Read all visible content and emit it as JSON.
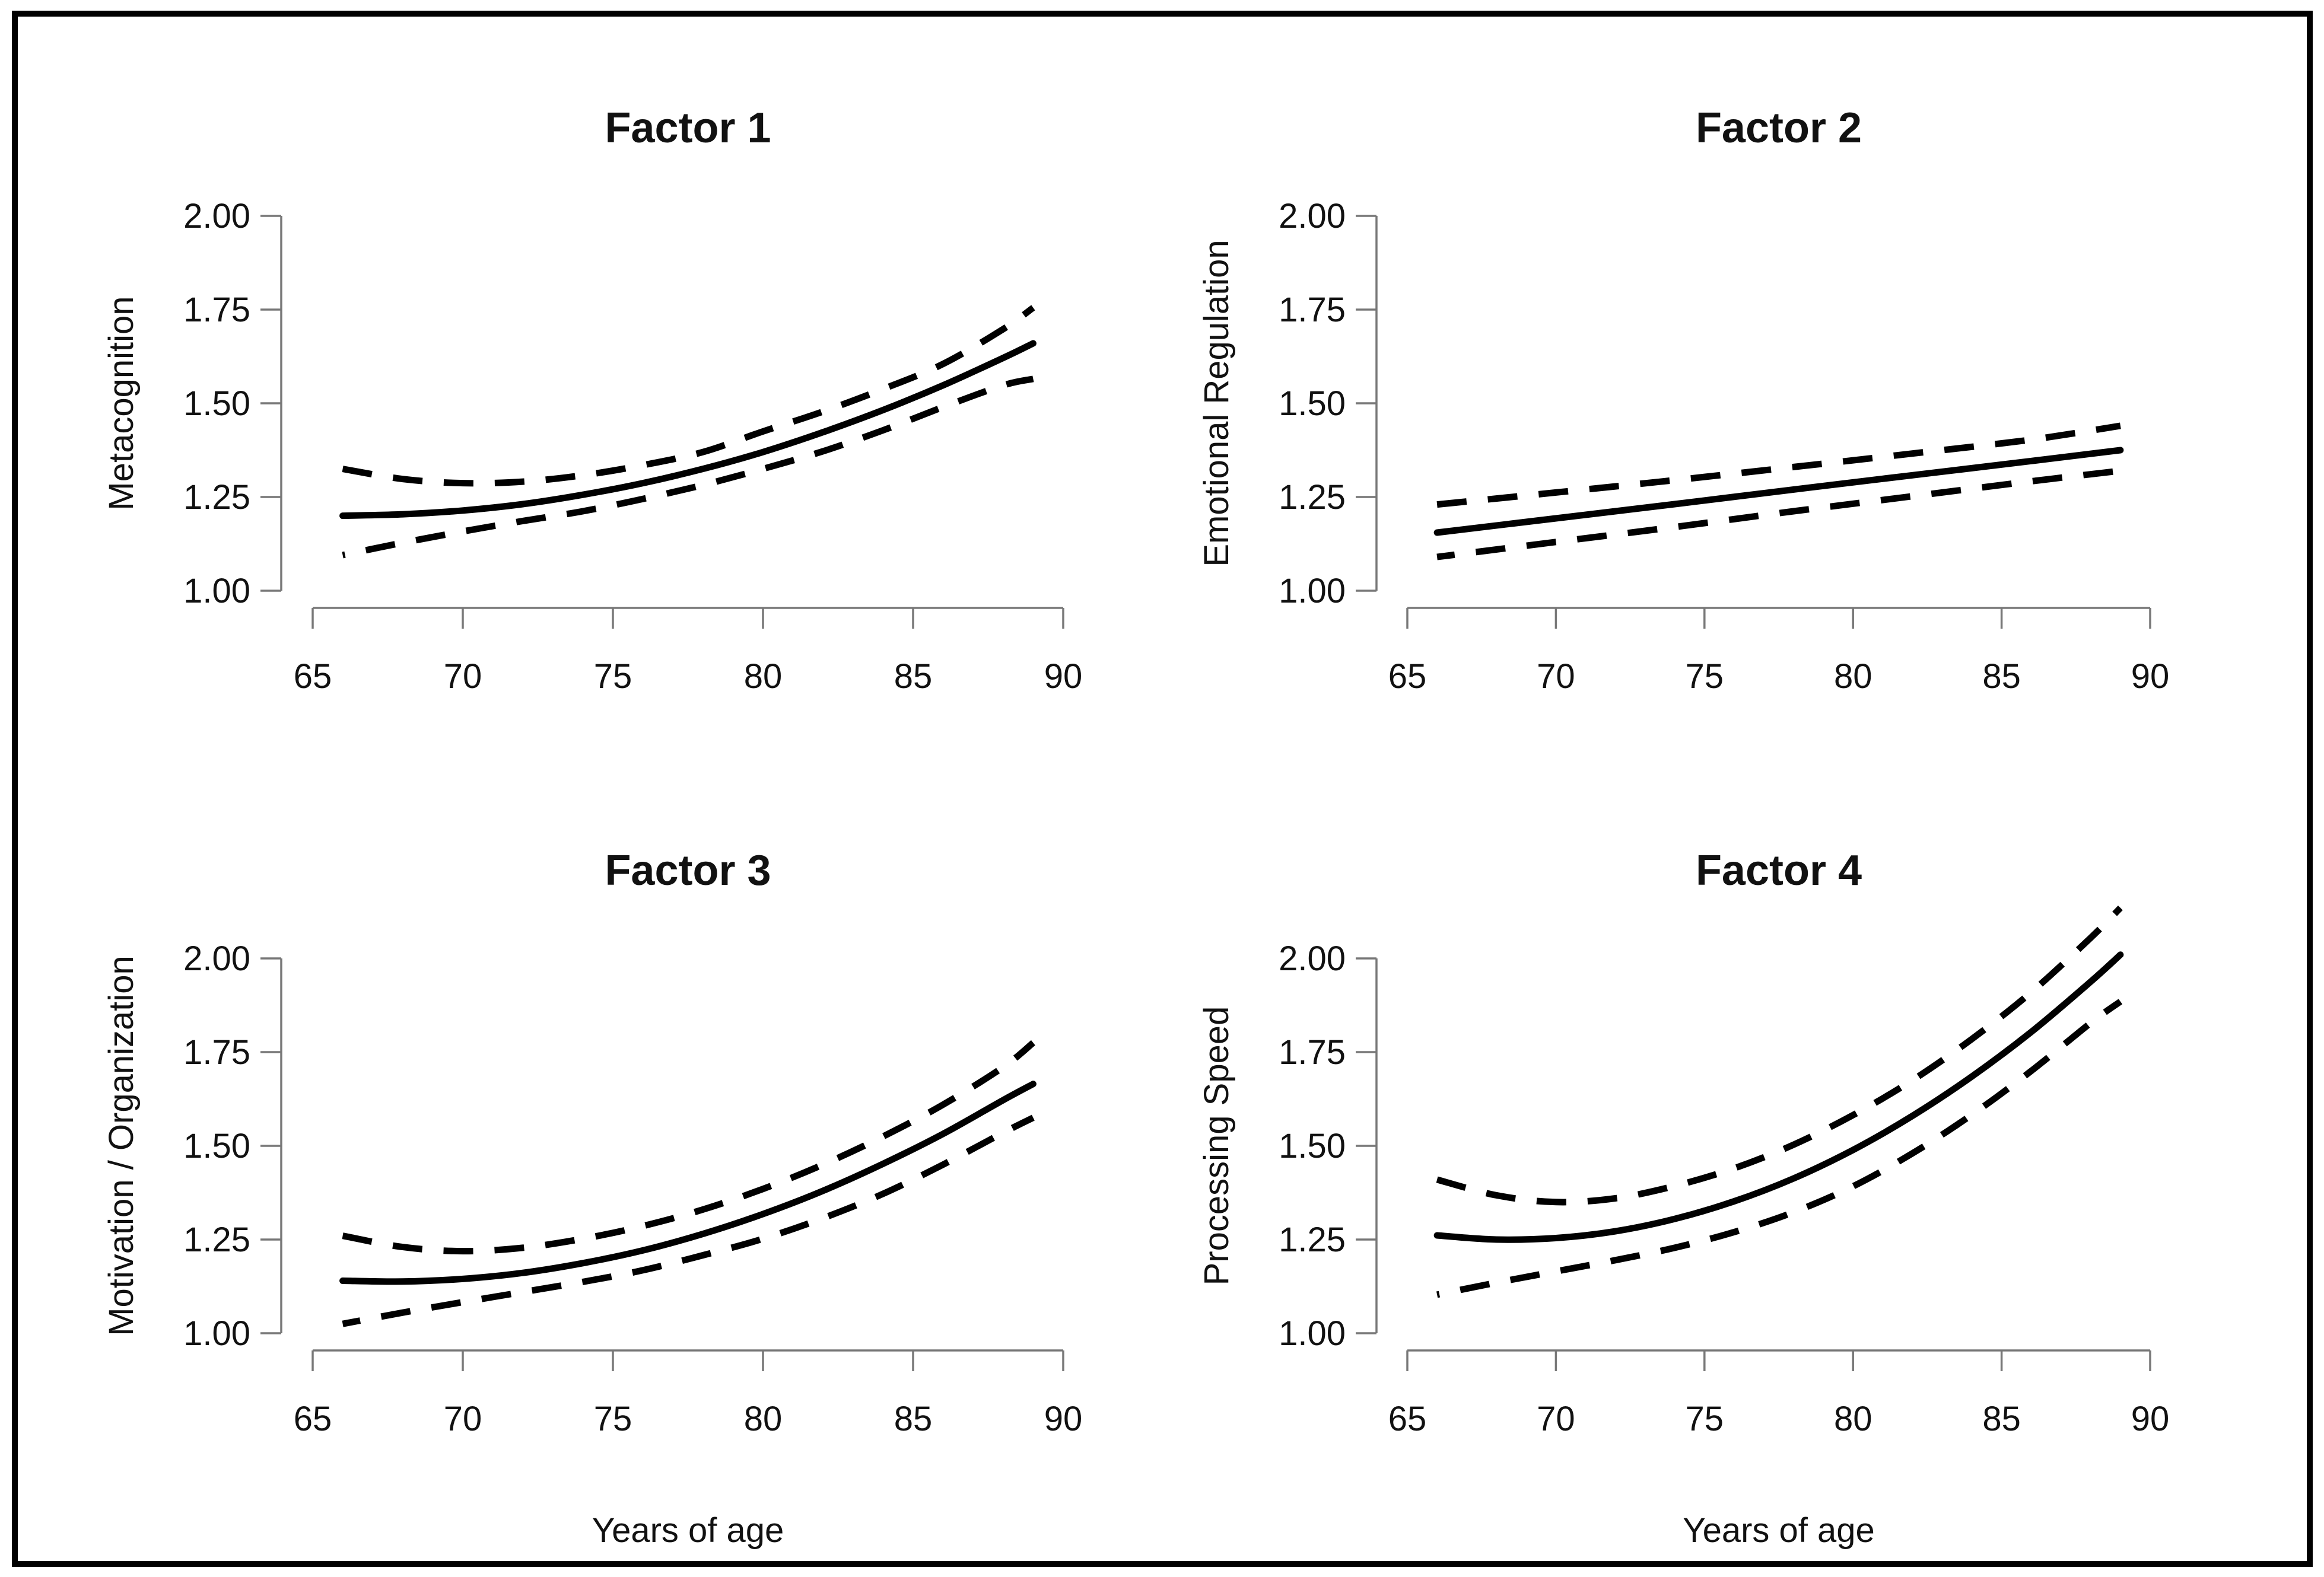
{
  "figure": {
    "background_color": "#ffffff",
    "border_color": "#000000",
    "curve_color": "#000000",
    "axis_color": "#787878",
    "x_axis_label": "Years of age"
  },
  "chart_data": [
    {
      "type": "line",
      "title": "Factor 1",
      "ylabel": "Metacognition",
      "xlabel": "",
      "xlim": [
        65,
        90
      ],
      "ylim": [
        1.0,
        2.0
      ],
      "x_ticks": [
        65,
        70,
        75,
        80,
        85,
        90
      ],
      "x_tick_labels": [
        "65",
        "70",
        "75",
        "80",
        "85",
        "90"
      ],
      "y_ticks": [
        1.0,
        1.25,
        1.5,
        1.75,
        2.0
      ],
      "y_tick_labels": [
        "1.00",
        "1.25",
        "1.50",
        "1.75",
        "2.00"
      ],
      "grid": false,
      "legend": "none",
      "series": [
        {
          "name": "estimate",
          "style": "solid",
          "dash_offset": 0,
          "points": [
            [
              66,
              1.2
            ],
            [
              68,
              1.204
            ],
            [
              70,
              1.214
            ],
            [
              72,
              1.231
            ],
            [
              74,
              1.256
            ],
            [
              76,
              1.287
            ],
            [
              78,
              1.325
            ],
            [
              80,
              1.37
            ],
            [
              82,
              1.423
            ],
            [
              84,
              1.482
            ],
            [
              86,
              1.548
            ],
            [
              88,
              1.621
            ],
            [
              89,
              1.66
            ]
          ]
        },
        {
          "name": "upper-ci",
          "style": "dashed",
          "dash_offset": 0,
          "points": [
            [
              66,
              1.325
            ],
            [
              68,
              1.298
            ],
            [
              70,
              1.287
            ],
            [
              72,
              1.291
            ],
            [
              74,
              1.308
            ],
            [
              76,
              1.335
            ],
            [
              78,
              1.37
            ],
            [
              80,
              1.425
            ],
            [
              82,
              1.478
            ],
            [
              84,
              1.538
            ],
            [
              86,
              1.605
            ],
            [
              88,
              1.698
            ],
            [
              89,
              1.755
            ]
          ]
        },
        {
          "name": "lower-ci",
          "style": "dashed",
          "dash_offset": 46,
          "points": [
            [
              66,
              1.095
            ],
            [
              68,
              1.128
            ],
            [
              70,
              1.158
            ],
            [
              72,
              1.186
            ],
            [
              74,
              1.212
            ],
            [
              76,
              1.245
            ],
            [
              78,
              1.282
            ],
            [
              80,
              1.325
            ],
            [
              82,
              1.372
            ],
            [
              84,
              1.428
            ],
            [
              86,
              1.49
            ],
            [
              88,
              1.548
            ],
            [
              89,
              1.565
            ]
          ]
        }
      ]
    },
    {
      "type": "line",
      "title": "Factor 2",
      "ylabel": "Emotional Regulation",
      "xlabel": "",
      "xlim": [
        65,
        90
      ],
      "ylim": [
        1.0,
        2.0
      ],
      "x_ticks": [
        65,
        70,
        75,
        80,
        85,
        90
      ],
      "x_tick_labels": [
        "65",
        "70",
        "75",
        "80",
        "85",
        "90"
      ],
      "y_ticks": [
        1.0,
        1.25,
        1.5,
        1.75,
        2.0
      ],
      "y_tick_labels": [
        "1.00",
        "1.25",
        "1.50",
        "1.75",
        "2.00"
      ],
      "grid": false,
      "legend": "none",
      "series": [
        {
          "name": "estimate",
          "style": "solid",
          "dash_offset": 0,
          "points": [
            [
              66,
              1.155
            ],
            [
              70,
              1.193
            ],
            [
              74,
              1.231
            ],
            [
              78,
              1.27
            ],
            [
              82,
              1.308
            ],
            [
              86,
              1.346
            ],
            [
              89,
              1.375
            ]
          ]
        },
        {
          "name": "upper-ci",
          "style": "dashed",
          "dash_offset": 0,
          "points": [
            [
              66,
              1.23
            ],
            [
              70,
              1.262
            ],
            [
              74,
              1.295
            ],
            [
              78,
              1.33
            ],
            [
              82,
              1.366
            ],
            [
              86,
              1.403
            ],
            [
              89,
              1.44
            ]
          ]
        },
        {
          "name": "lower-ci",
          "style": "dashed",
          "dash_offset": 20,
          "points": [
            [
              66,
              1.09
            ],
            [
              70,
              1.13
            ],
            [
              74,
              1.17
            ],
            [
              78,
              1.212
            ],
            [
              82,
              1.252
            ],
            [
              86,
              1.292
            ],
            [
              89,
              1.32
            ]
          ]
        }
      ]
    },
    {
      "type": "line",
      "title": "Factor 3",
      "ylabel": "Motivation / Organization",
      "xlabel": "Years of age",
      "xlim": [
        65,
        90
      ],
      "ylim": [
        1.0,
        2.0
      ],
      "x_ticks": [
        65,
        70,
        75,
        80,
        85,
        90
      ],
      "x_tick_labels": [
        "65",
        "70",
        "75",
        "80",
        "85",
        "90"
      ],
      "y_ticks": [
        1.0,
        1.25,
        1.5,
        1.75,
        2.0
      ],
      "y_tick_labels": [
        "1.00",
        "1.25",
        "1.50",
        "1.75",
        "2.00"
      ],
      "grid": false,
      "legend": "none",
      "series": [
        {
          "name": "estimate",
          "style": "solid",
          "dash_offset": 0,
          "points": [
            [
              66,
              1.14
            ],
            [
              68,
              1.138
            ],
            [
              70,
              1.145
            ],
            [
              72,
              1.161
            ],
            [
              74,
              1.187
            ],
            [
              76,
              1.221
            ],
            [
              78,
              1.265
            ],
            [
              80,
              1.318
            ],
            [
              82,
              1.38
            ],
            [
              84,
              1.452
            ],
            [
              86,
              1.532
            ],
            [
              88,
              1.622
            ],
            [
              89,
              1.665
            ]
          ]
        },
        {
          "name": "upper-ci",
          "style": "dashed",
          "dash_offset": 0,
          "points": [
            [
              66,
              1.26
            ],
            [
              68,
              1.23
            ],
            [
              70,
              1.219
            ],
            [
              72,
              1.228
            ],
            [
              74,
              1.252
            ],
            [
              76,
              1.286
            ],
            [
              78,
              1.33
            ],
            [
              80,
              1.385
            ],
            [
              82,
              1.45
            ],
            [
              84,
              1.525
            ],
            [
              86,
              1.61
            ],
            [
              88,
              1.71
            ],
            [
              89,
              1.775
            ]
          ]
        },
        {
          "name": "lower-ci",
          "style": "dashed",
          "dash_offset": 20,
          "points": [
            [
              66,
              1.025
            ],
            [
              68,
              1.055
            ],
            [
              70,
              1.083
            ],
            [
              72,
              1.11
            ],
            [
              74,
              1.137
            ],
            [
              76,
              1.168
            ],
            [
              78,
              1.208
            ],
            [
              80,
              1.252
            ],
            [
              82,
              1.307
            ],
            [
              84,
              1.372
            ],
            [
              86,
              1.45
            ],
            [
              88,
              1.535
            ],
            [
              89,
              1.575
            ]
          ]
        }
      ]
    },
    {
      "type": "line",
      "title": "Factor 4",
      "ylabel": "Processing Speed",
      "xlabel": "Years of age",
      "xlim": [
        65,
        90
      ],
      "ylim": [
        1.0,
        2.0
      ],
      "x_ticks": [
        65,
        70,
        75,
        80,
        85,
        90
      ],
      "x_tick_labels": [
        "65",
        "70",
        "75",
        "80",
        "85",
        "90"
      ],
      "y_ticks": [
        1.0,
        1.25,
        1.5,
        1.75,
        2.0
      ],
      "y_tick_labels": [
        "1.00",
        "1.25",
        "1.50",
        "1.75",
        "2.00"
      ],
      "grid": false,
      "legend": "none",
      "series": [
        {
          "name": "estimate",
          "style": "solid",
          "dash_offset": 0,
          "points": [
            [
              66,
              1.261
            ],
            [
              68,
              1.25
            ],
            [
              70,
              1.254
            ],
            [
              72,
              1.272
            ],
            [
              74,
              1.305
            ],
            [
              76,
              1.352
            ],
            [
              78,
              1.413
            ],
            [
              80,
              1.489
            ],
            [
              82,
              1.58
            ],
            [
              84,
              1.685
            ],
            [
              86,
              1.804
            ],
            [
              88,
              1.938
            ],
            [
              89,
              2.01
            ]
          ]
        },
        {
          "name": "upper-ci",
          "style": "dashed",
          "dash_offset": 0,
          "points": [
            [
              66,
              1.41
            ],
            [
              68,
              1.368
            ],
            [
              70,
              1.35
            ],
            [
              72,
              1.36
            ],
            [
              74,
              1.393
            ],
            [
              76,
              1.44
            ],
            [
              78,
              1.503
            ],
            [
              80,
              1.582
            ],
            [
              82,
              1.675
            ],
            [
              84,
              1.785
            ],
            [
              86,
              1.91
            ],
            [
              88,
              2.055
            ],
            [
              89,
              2.135
            ]
          ]
        },
        {
          "name": "lower-ci",
          "style": "dashed",
          "dash_offset": 46,
          "points": [
            [
              66,
              1.103
            ],
            [
              68,
              1.135
            ],
            [
              70,
              1.165
            ],
            [
              72,
              1.195
            ],
            [
              74,
              1.228
            ],
            [
              76,
              1.27
            ],
            [
              78,
              1.323
            ],
            [
              80,
              1.392
            ],
            [
              82,
              1.48
            ],
            [
              84,
              1.583
            ],
            [
              86,
              1.7
            ],
            [
              88,
              1.828
            ],
            [
              89,
              1.885
            ]
          ]
        }
      ]
    }
  ]
}
